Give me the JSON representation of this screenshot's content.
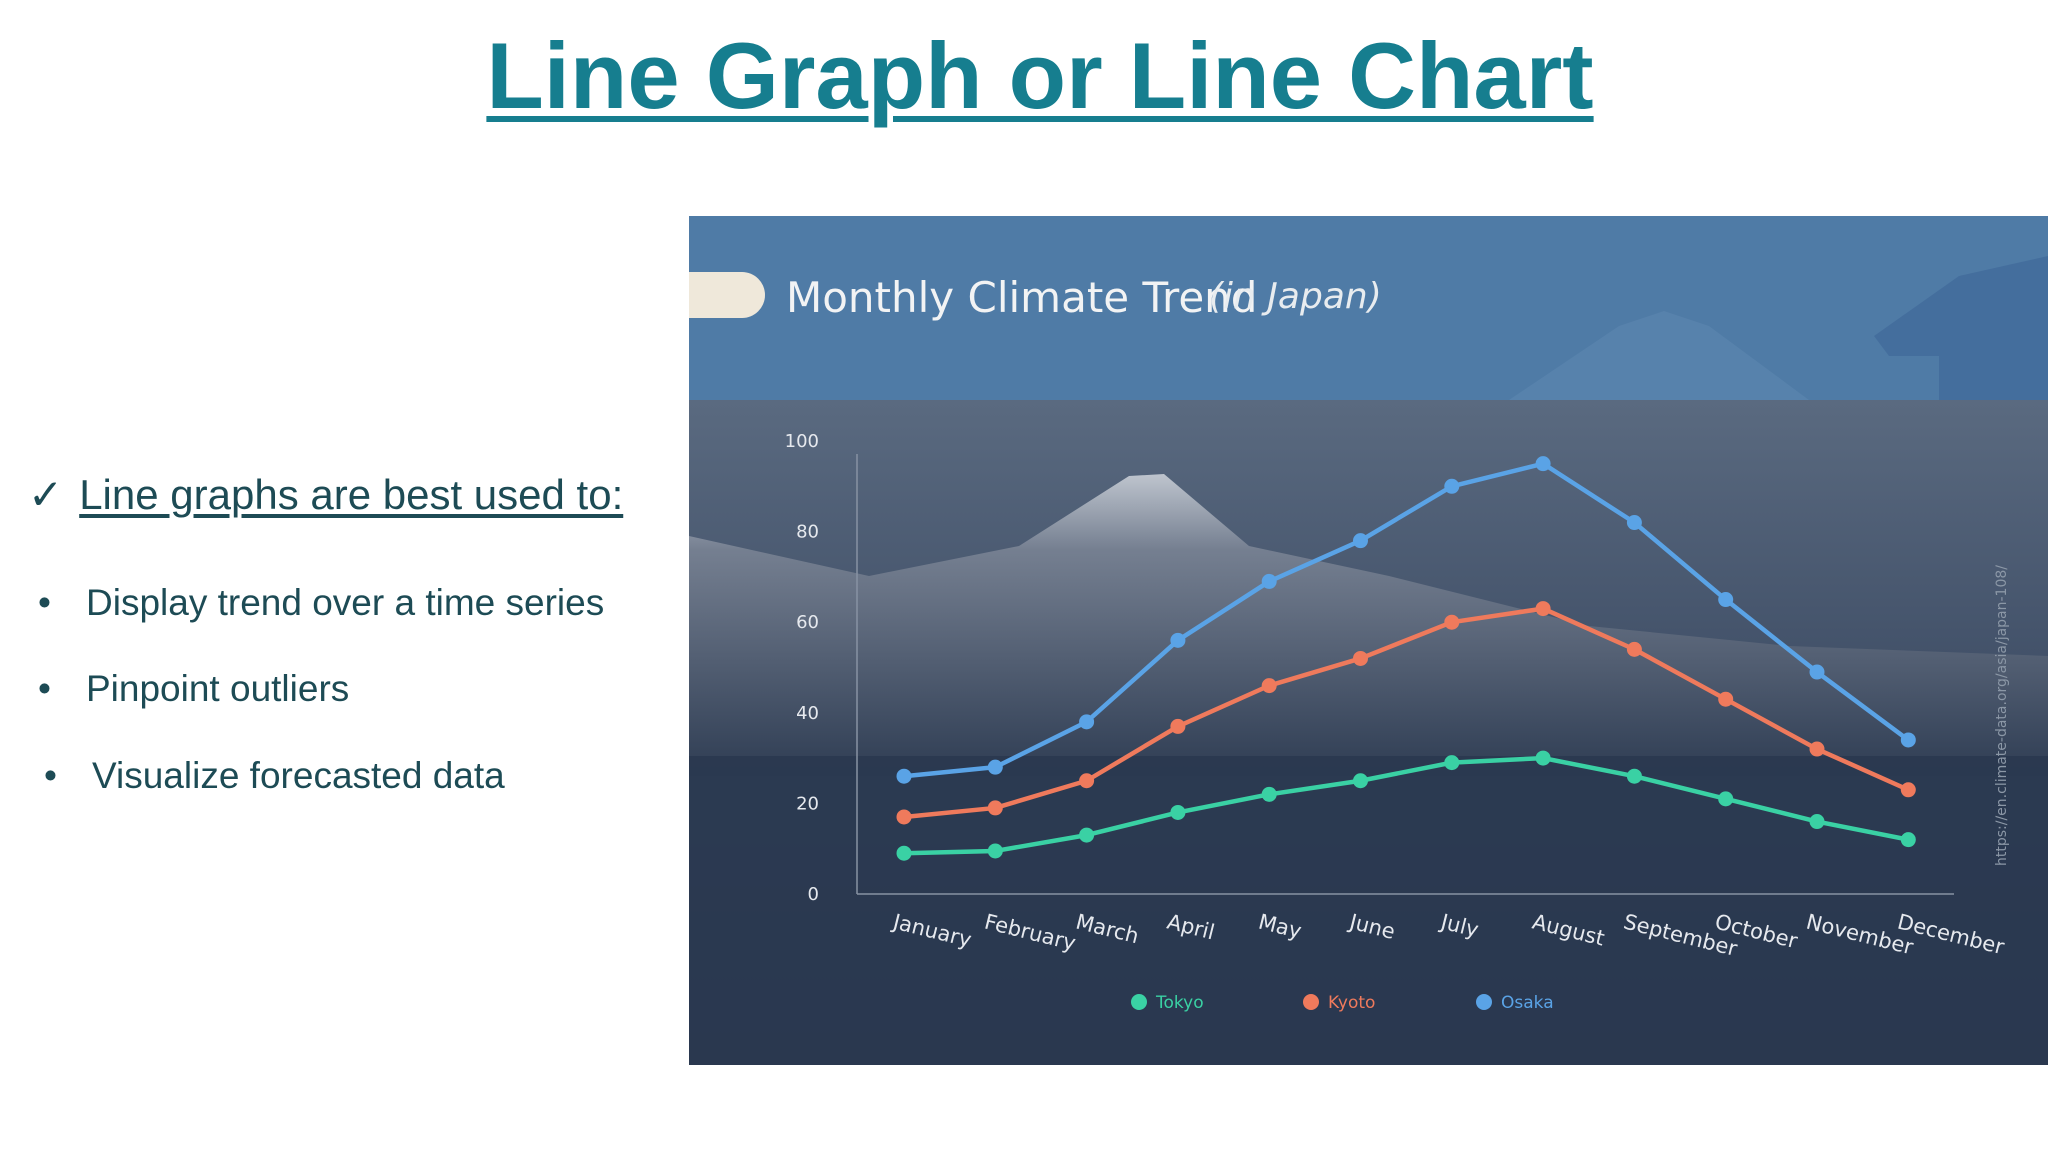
{
  "slide": {
    "title": "Line Graph or Line Chart",
    "intro_check": "✓",
    "intro_text": "Line graphs are best used to:",
    "bullets": [
      "Display trend over a time series",
      "Pinpoint outliers",
      "Visualize forecasted data"
    ],
    "bullet_glyph": "•"
  },
  "chart_data": {
    "type": "line",
    "title": "Monthly Climate Trend",
    "subtitle": "(in Japan)",
    "source": "https://en.climate-data.org/asia/japan-108/",
    "x": [
      "January",
      "February",
      "March",
      "April",
      "May",
      "June",
      "July",
      "August",
      "September",
      "October",
      "November",
      "December"
    ],
    "ylim": [
      0,
      100
    ],
    "yticks": [
      0,
      20,
      40,
      60,
      80,
      100
    ],
    "xlabel": "",
    "ylabel": "",
    "grid": false,
    "legend": "bottom-center",
    "series": [
      {
        "name": "Tokyo",
        "color": "#3ad1a4",
        "values": [
          9,
          9.5,
          13,
          18,
          22,
          25,
          29,
          30,
          26,
          21,
          16,
          12
        ]
      },
      {
        "name": "Kyoto",
        "color": "#ef7a5c",
        "values": [
          17,
          19,
          25,
          37,
          46,
          52,
          60,
          63,
          54,
          43,
          32,
          23
        ]
      },
      {
        "name": "Osaka",
        "color": "#5aa3e6",
        "values": [
          26,
          28,
          38,
          56,
          69,
          78,
          90,
          95,
          82,
          65,
          49,
          34
        ]
      }
    ]
  }
}
